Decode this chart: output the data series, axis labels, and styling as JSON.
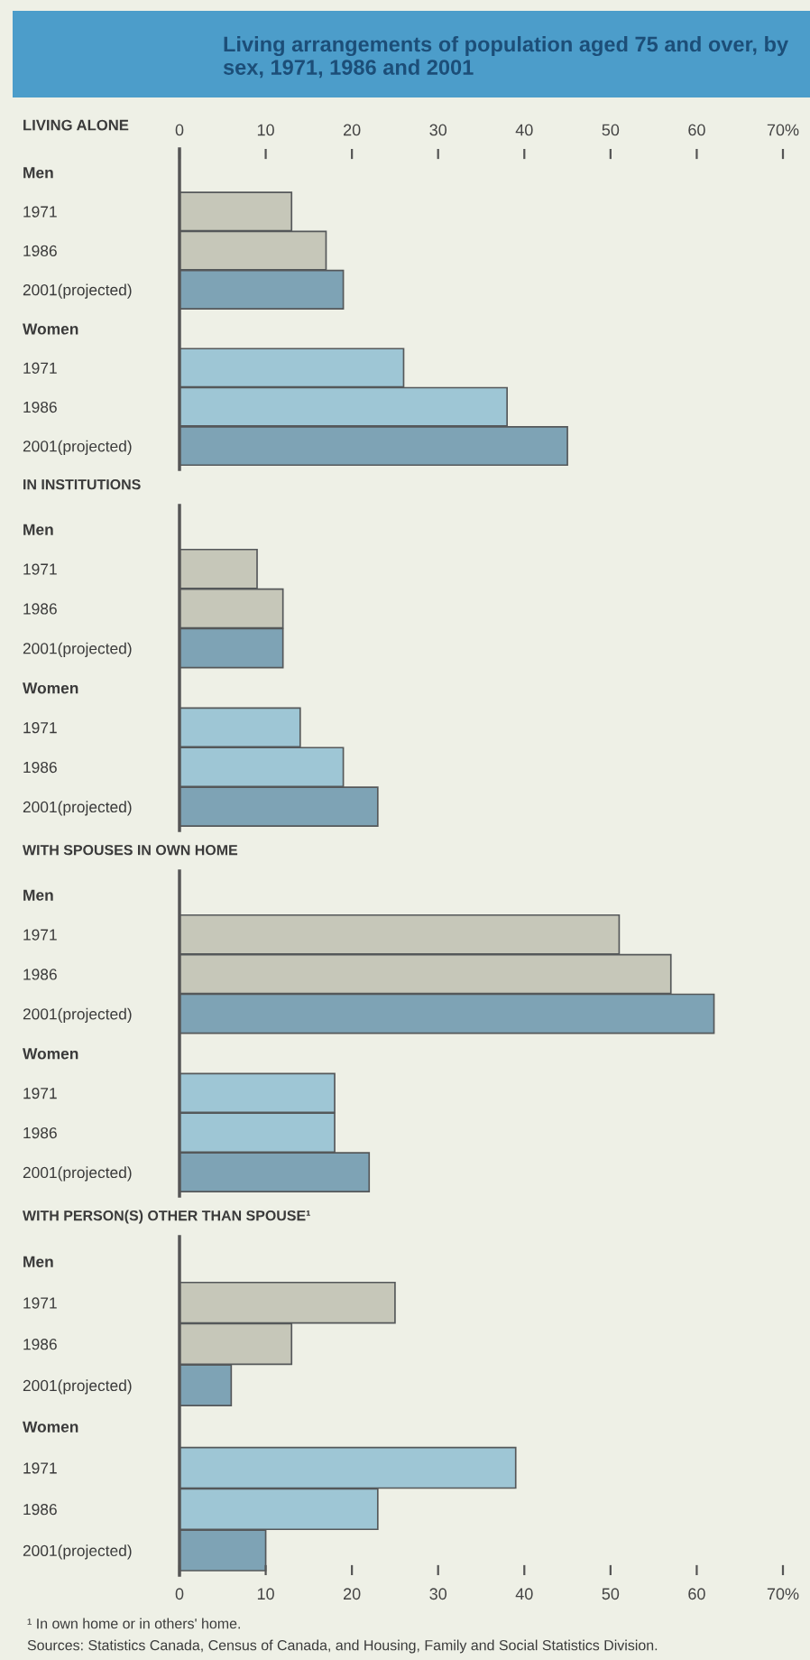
{
  "chart_data": [
    {
      "type": "bar",
      "orientation": "horizontal",
      "title": "Living arrangements of population aged 75 and over, by sex, 1971, 1986 and 2001",
      "subtitle": "LIVING ALONE",
      "categories": [
        "Men",
        "1971",
        "1986",
        "2001(projected)",
        "Women",
        "1971",
        "1986",
        "2001(projected)"
      ],
      "values": [
        null,
        13,
        17,
        19,
        null,
        26,
        38,
        45
      ],
      "colors": [
        null,
        "#c6c7b9",
        "#c6c7b9",
        "#7ea3b5",
        null,
        "#9ec6d5",
        "#9ec6d5",
        "#7ea3b5"
      ],
      "xlim": [
        0,
        70
      ],
      "xticks": [
        0,
        10,
        20,
        30,
        40,
        50,
        60,
        {
          "value": 70,
          "label": "70%"
        }
      ]
    },
    {
      "type": "bar",
      "orientation": "horizontal",
      "title": "IN INSTITUTIONS",
      "categories": [
        "Men",
        "1971",
        "1986",
        "2001(projected)",
        "Women",
        "1971",
        "1986",
        "2001(projected)"
      ],
      "values": [
        null,
        9,
        12,
        12,
        null,
        14,
        19,
        23
      ],
      "colors": [
        null,
        "#c6c7b9",
        "#c6c7b9",
        "#7ea3b5",
        null,
        "#9ec6d5",
        "#9ec6d5",
        "#7ea3b5"
      ],
      "xlim": [
        0,
        70
      ],
      "tick_labels": "y"
    },
    {
      "type": "bar",
      "orientation": "horizontal",
      "title": "WITH SPOUSES IN OWN HOME",
      "categories": [
        "Men",
        "1971",
        "1986",
        "2001(projected)",
        "Women",
        "1971",
        "1986",
        "2001(projected)"
      ],
      "values": [
        null,
        51,
        57,
        62,
        null,
        18,
        18,
        22
      ],
      "colors": [
        null,
        "#c6c7b9",
        "#c6c7b9",
        "#7ea3b5",
        null,
        "#9ec6d5",
        "#9ec6d5",
        "#7ea3b5"
      ],
      "xlim": [
        0,
        70
      ],
      "tick_labels": "y"
    },
    {
      "type": "bar",
      "orientation": "horizontal",
      "title": "WITH PERSON(S) OTHER THAN SPOUSE¹",
      "categories": [
        "Men",
        "1971",
        "1986",
        "2001(projected)",
        "Women",
        "1971",
        "1986",
        "2001(projected)"
      ],
      "values": [
        null,
        25,
        13,
        6,
        null,
        39,
        23,
        10
      ],
      "colors": [
        null,
        "#c6c7b9",
        "#c6c7b9",
        "#7ea3b5",
        null,
        "#9ec6d5",
        "#9ec6d5",
        "#7ea3b5"
      ],
      "xlim": [
        0,
        70
      ],
      "xticks": [
        0,
        10,
        20,
        30,
        40,
        50,
        60,
        {
          "value": 70,
          "label": "70%"
        }
      ],
      "annotations": [
        "¹ In own home or in others' home.",
        "Sources: Statistics Canada, Census of Canada, and Housing, Family and Social Statistics Division."
      ]
    }
  ]
}
